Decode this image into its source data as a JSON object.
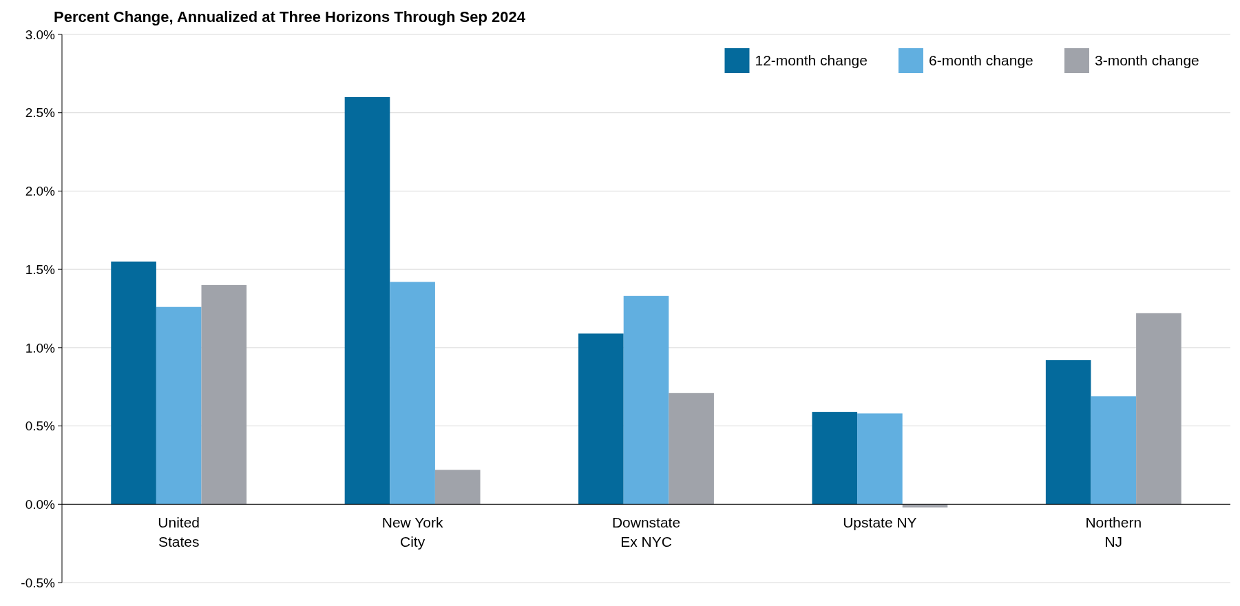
{
  "chart_data": {
    "type": "bar",
    "title": "Percent Change, Annualized at Three Horizons Through Sep 2024",
    "categories": [
      "United States",
      "New York City",
      "Downstate Ex NYC",
      "Upstate NY",
      "Northern NJ"
    ],
    "series": [
      {
        "name": "12-month change",
        "color": "#046a9c",
        "values": [
          1.55,
          2.6,
          1.09,
          0.59,
          0.92
        ]
      },
      {
        "name": "6-month change",
        "color": "#61afe0",
        "values": [
          1.26,
          1.42,
          1.33,
          0.58,
          0.69
        ]
      },
      {
        "name": "3-month change",
        "color": "#a0a3aa",
        "values": [
          1.4,
          0.22,
          0.71,
          -0.02,
          1.22
        ]
      }
    ],
    "ylim": [
      -0.5,
      3.0
    ],
    "yticks": [
      {
        "value": -0.5,
        "label": "-0.5%"
      },
      {
        "value": 0,
        "label": "0.0%"
      },
      {
        "value": 0.5,
        "label": "0.5%"
      },
      {
        "value": 1,
        "label": "1.0%"
      },
      {
        "value": 1.5,
        "label": "1.5%"
      },
      {
        "value": 2,
        "label": "2.0%"
      },
      {
        "value": 2.5,
        "label": "2.5%"
      },
      {
        "value": 3,
        "label": "3.0%"
      }
    ],
    "grid": "y",
    "legend": "top right"
  }
}
